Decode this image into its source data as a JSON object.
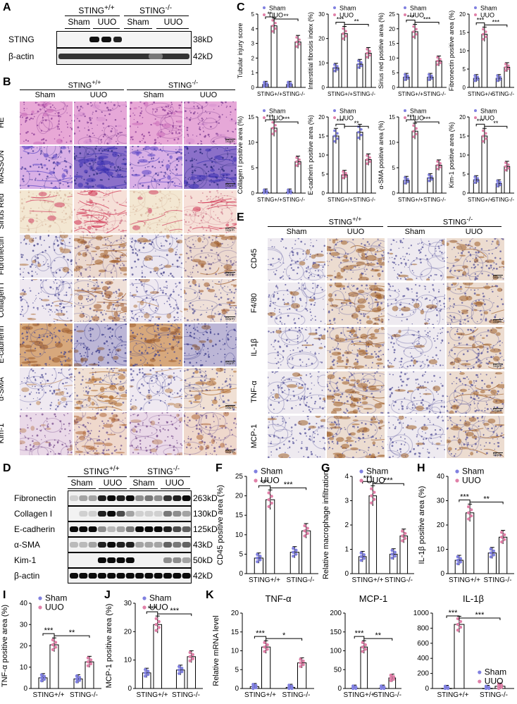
{
  "panel_letters": {
    "A": "A",
    "B": "B",
    "C": "C",
    "D": "D",
    "E": "E",
    "F": "F",
    "G": "G",
    "H": "H",
    "I": "I",
    "J": "J",
    "K": "K"
  },
  "genotypes": {
    "wt": "STING",
    "wt_sup": "+/+",
    "ko": "STING",
    "ko_sup": "-/-"
  },
  "groups": {
    "sham": "Sham",
    "uuo": "UUO"
  },
  "panelA": {
    "header_wt": "STING",
    "header_wt_sup": "+/+",
    "header_ko": "STING",
    "header_ko_sup": "-/-",
    "bands": [
      {
        "name": "STING",
        "kd": "38kD"
      },
      {
        "name": "β-actin",
        "kd": "42kD"
      }
    ]
  },
  "panelB": {
    "header_wt": "STING",
    "header_wt_sup": "+/+",
    "header_ko": "STING",
    "header_ko_sup": "-/-",
    "rows": [
      "HE",
      "MASSON",
      "Sirius Red",
      "Fibronectin",
      "Collagen I",
      "E-cadherin",
      "α-SMA",
      "Kim-1"
    ],
    "scale": "50μm"
  },
  "panelD": {
    "header_wt": "STING",
    "header_wt_sup": "+/+",
    "header_ko": "STING",
    "header_ko_sup": "-/-",
    "bands": [
      {
        "name": "Fibronectin",
        "kd": "263kD"
      },
      {
        "name": "Collagen I",
        "kd": "130kD"
      },
      {
        "name": "E-cadherin",
        "kd": "125kD"
      },
      {
        "name": "α-SMA",
        "kd": "43kD"
      },
      {
        "name": "Kim-1",
        "kd": "50kD"
      },
      {
        "name": "β-actin",
        "kd": "42kD"
      }
    ]
  },
  "panelE": {
    "header_wt": "STING",
    "header_wt_sup": "+/+",
    "header_ko": "STING",
    "header_ko_sup": "-/-",
    "rows": [
      "CD45",
      "F4/80",
      "IL-1β",
      "TNF-α",
      "MCP-1"
    ],
    "scale": "50μm"
  },
  "colors": {
    "sham": "#8080e0",
    "uuo": "#e080a8",
    "bar_edge": "#000000"
  },
  "chart_data": [
    {
      "id": "C1",
      "type": "bar",
      "ylabel": "Tubular injury score",
      "ylim": [
        0,
        5
      ],
      "yticks": [
        0,
        1,
        2,
        3,
        4,
        5
      ],
      "categories": [
        "STING+/+",
        "STING-/-"
      ],
      "series": [
        {
          "name": "Sham",
          "values": [
            0.2,
            0.2
          ]
        },
        {
          "name": "UUO",
          "values": [
            4.2,
            3.1
          ]
        }
      ],
      "sig": [
        "**",
        "**"
      ]
    },
    {
      "id": "C2",
      "type": "bar",
      "ylabel": "Interstitial fibrosis index (%)",
      "ylim": [
        0,
        30
      ],
      "yticks": [
        0,
        10,
        20,
        30
      ],
      "categories": [
        "STING+/+",
        "STING-/-"
      ],
      "series": [
        {
          "name": "Sham",
          "values": [
            8,
            9.5
          ]
        },
        {
          "name": "UUO",
          "values": [
            22,
            14
          ]
        }
      ],
      "sig": [
        "***",
        "**"
      ]
    },
    {
      "id": "C3",
      "type": "bar",
      "ylabel": "Sirius red positive area (%)",
      "ylim": [
        0,
        25
      ],
      "yticks": [
        0,
        5,
        10,
        15,
        20,
        25
      ],
      "categories": [
        "STING+/+",
        "STING-/-"
      ],
      "series": [
        {
          "name": "Sham",
          "values": [
            3.5,
            3.5
          ]
        },
        {
          "name": "UUO",
          "values": [
            19,
            9
          ]
        }
      ],
      "sig": [
        "***",
        "***"
      ]
    },
    {
      "id": "C4",
      "type": "bar",
      "ylabel": "Fibronectin positive area (%)",
      "ylim": [
        0,
        20
      ],
      "yticks": [
        0,
        5,
        10,
        15,
        20
      ],
      "categories": [
        "STING+/+",
        "STING-/-"
      ],
      "series": [
        {
          "name": "Sham",
          "values": [
            2.5,
            2.5
          ]
        },
        {
          "name": "UUO",
          "values": [
            14.5,
            5.5
          ]
        }
      ],
      "sig": [
        "***",
        "***"
      ]
    },
    {
      "id": "C5",
      "type": "bar",
      "ylabel": "Collagen I positive area (%)",
      "ylim": [
        0,
        15
      ],
      "yticks": [
        0,
        5,
        10,
        15
      ],
      "categories": [
        "STING+/+",
        "STING-/-"
      ],
      "series": [
        {
          "name": "Sham",
          "values": [
            0.2,
            0.2
          ]
        },
        {
          "name": "UUO",
          "values": [
            12.8,
            6.2
          ]
        }
      ],
      "sig": [
        "***",
        "***"
      ]
    },
    {
      "id": "C6",
      "type": "bar",
      "ylabel": "E-cadherin positive area (%)",
      "ylim": [
        0,
        20
      ],
      "yticks": [
        0,
        5,
        10,
        15,
        20
      ],
      "categories": [
        "STING+/+",
        "STING-/-"
      ],
      "series": [
        {
          "name": "Sham",
          "values": [
            15,
            16
          ]
        },
        {
          "name": "UUO",
          "values": [
            4.8,
            8.8
          ]
        }
      ],
      "sig": [
        "***",
        "**"
      ]
    },
    {
      "id": "C7",
      "type": "bar",
      "ylabel": "α-SMA positive area (%)",
      "ylim": [
        0,
        15
      ],
      "yticks": [
        0,
        5,
        10,
        15
      ],
      "categories": [
        "STING+/+",
        "STING-/-"
      ],
      "series": [
        {
          "name": "Sham",
          "values": [
            2.5,
            3
          ]
        },
        {
          "name": "UUO",
          "values": [
            12.2,
            5.5
          ]
        }
      ],
      "sig": [
        "***",
        "***"
      ]
    },
    {
      "id": "C8",
      "type": "bar",
      "ylabel": "Kim-1 positive area (%)",
      "ylim": [
        0,
        20
      ],
      "yticks": [
        0,
        5,
        10,
        15,
        20
      ],
      "categories": [
        "STING+/+",
        "STING-/-"
      ],
      "series": [
        {
          "name": "Sham",
          "values": [
            3.5,
            2.5
          ]
        },
        {
          "name": "UUO",
          "values": [
            15,
            7
          ]
        }
      ],
      "sig": [
        "***",
        "**"
      ]
    },
    {
      "id": "F",
      "type": "bar",
      "ylabel": "CD45 positive area (%)",
      "ylim": [
        0,
        25
      ],
      "yticks": [
        0,
        5,
        10,
        15,
        20,
        25
      ],
      "categories": [
        "STING+/+",
        "STING-/-"
      ],
      "series": [
        {
          "name": "Sham",
          "values": [
            4,
            5.5
          ]
        },
        {
          "name": "UUO",
          "values": [
            19,
            11
          ]
        }
      ],
      "sig": [
        "***",
        "***"
      ]
    },
    {
      "id": "G",
      "type": "bar",
      "ylabel": "Relative macrophage infiltration",
      "ylim": [
        0,
        4
      ],
      "yticks": [
        0,
        1,
        2,
        3,
        4
      ],
      "categories": [
        "STING+/+",
        "STING-/-"
      ],
      "series": [
        {
          "name": "Sham",
          "values": [
            0.7,
            0.8
          ]
        },
        {
          "name": "UUO",
          "values": [
            3.2,
            1.55
          ]
        }
      ],
      "sig": [
        "***",
        "***"
      ]
    },
    {
      "id": "H",
      "type": "bar",
      "ylabel": "IL-1β positive area (%)",
      "ylim": [
        0,
        40
      ],
      "yticks": [
        0,
        10,
        20,
        30,
        40
      ],
      "categories": [
        "STING+/+",
        "STING-/-"
      ],
      "series": [
        {
          "name": "Sham",
          "values": [
            5.5,
            8.5
          ]
        },
        {
          "name": "UUO",
          "values": [
            25,
            15
          ]
        }
      ],
      "sig": [
        "***",
        "**"
      ]
    },
    {
      "id": "I",
      "type": "bar",
      "ylabel": "TNF-α positive area (%)",
      "ylim": [
        0,
        40
      ],
      "yticks": [
        0,
        10,
        20,
        30,
        40
      ],
      "categories": [
        "STING+/+",
        "STING-/-"
      ],
      "series": [
        {
          "name": "Sham",
          "values": [
            5,
            4.5
          ]
        },
        {
          "name": "UUO",
          "values": [
            20.5,
            12.5
          ]
        }
      ],
      "sig": [
        "***",
        "**"
      ]
    },
    {
      "id": "J",
      "type": "bar",
      "ylabel": "MCP-1 positive area (%)",
      "ylim": [
        0,
        30
      ],
      "yticks": [
        0,
        10,
        20,
        30
      ],
      "categories": [
        "STING+/+",
        "STING-/-"
      ],
      "series": [
        {
          "name": "Sham",
          "values": [
            5.5,
            6.5
          ]
        },
        {
          "name": "UUO",
          "values": [
            22.5,
            11.2
          ]
        }
      ],
      "sig": [
        "***",
        "***"
      ]
    },
    {
      "id": "K1",
      "type": "bar",
      "title": "TNF-α",
      "ylabel": "Relative mRNA level",
      "ylim": [
        0,
        20
      ],
      "yticks": [
        0,
        5,
        10,
        15,
        20
      ],
      "categories": [
        "STING+/+",
        "STING-/-"
      ],
      "series": [
        {
          "name": "Sham",
          "values": [
            0.5,
            0.3
          ]
        },
        {
          "name": "UUO",
          "values": [
            11,
            6.8
          ]
        }
      ],
      "sig": [
        "***",
        "*"
      ]
    },
    {
      "id": "K2",
      "type": "bar",
      "title": "MCP-1",
      "ylabel": "",
      "ylim": [
        0,
        200
      ],
      "yticks": [
        0,
        50,
        100,
        150,
        200
      ],
      "categories": [
        "STING+/+",
        "STING-/-"
      ],
      "series": [
        {
          "name": "Sham",
          "values": [
            1,
            1
          ]
        },
        {
          "name": "UUO",
          "values": [
            110,
            28
          ]
        }
      ],
      "sig": [
        "***",
        "**"
      ]
    },
    {
      "id": "K3",
      "type": "bar",
      "title": "IL-1β",
      "ylabel": "",
      "ylim": [
        0,
        1000
      ],
      "yticks": [
        0,
        200,
        400,
        600,
        800,
        1000
      ],
      "categories": [
        "STING+/+",
        "STING-/-"
      ],
      "series": [
        {
          "name": "Sham",
          "values": [
            2,
            2
          ]
        },
        {
          "name": "UUO",
          "values": [
            850,
            30
          ]
        }
      ],
      "sig": [
        "***",
        "***"
      ]
    }
  ]
}
